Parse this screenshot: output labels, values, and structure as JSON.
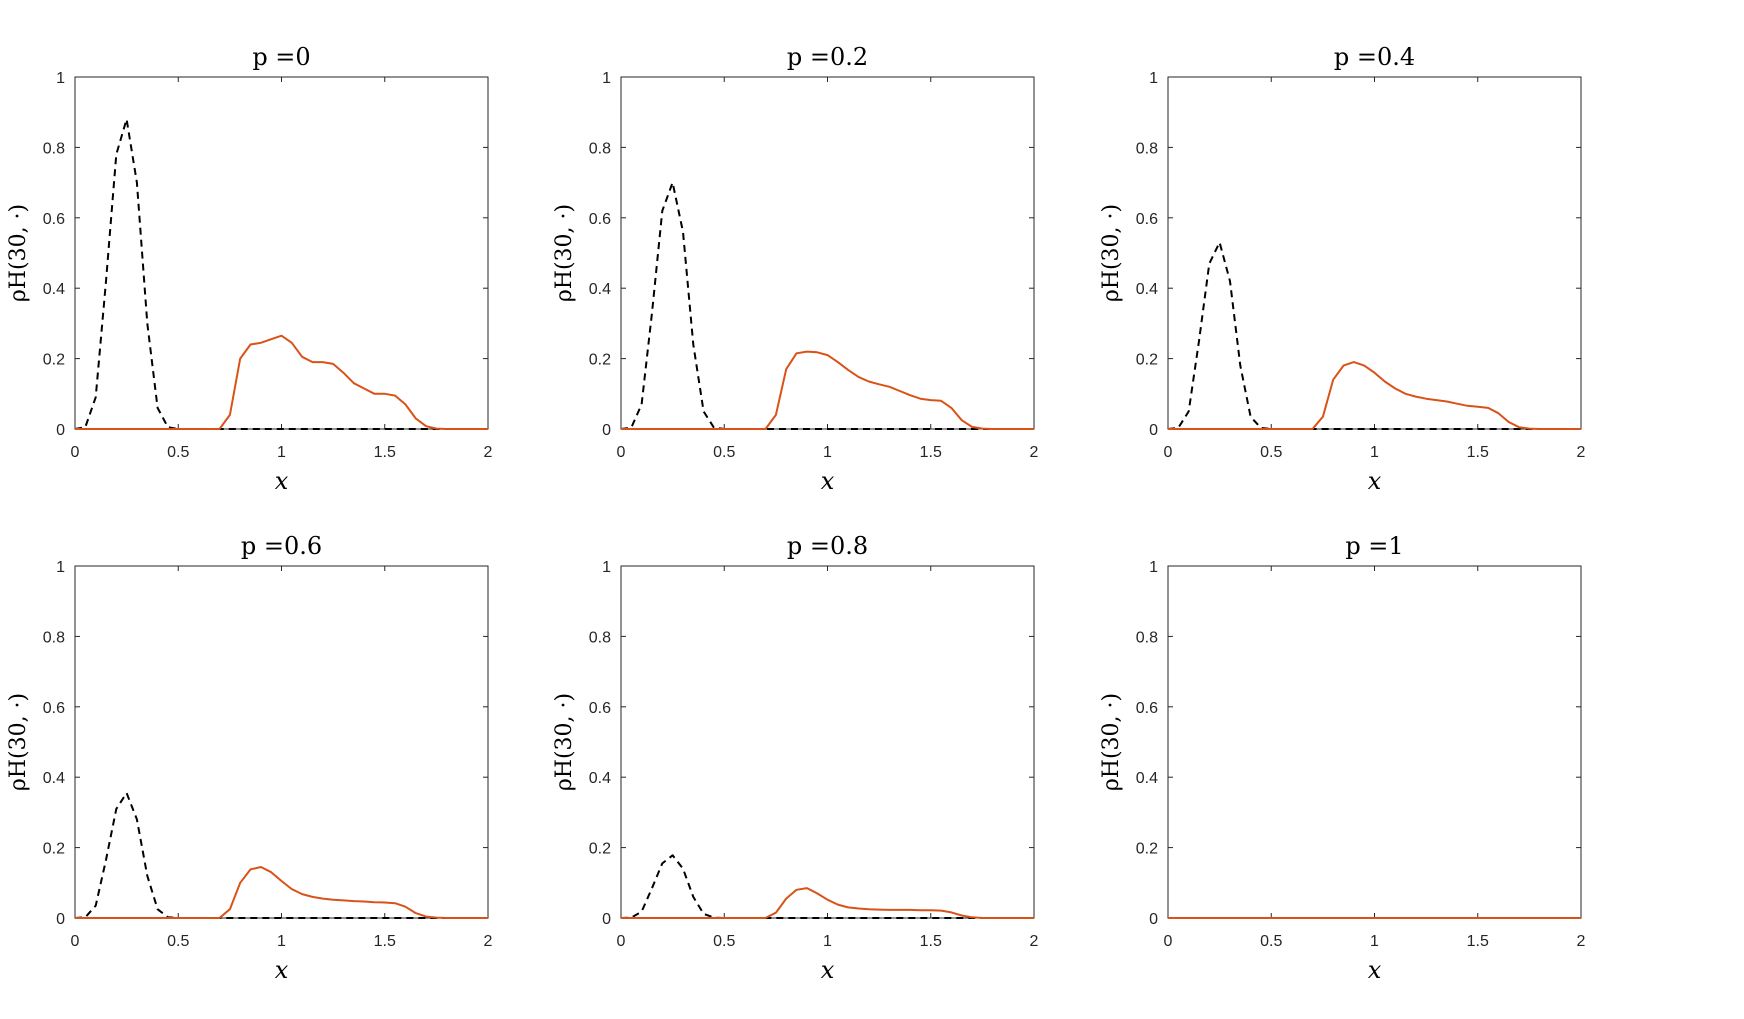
{
  "chart_data": [
    {
      "type": "line",
      "title": "p =0",
      "xlabel": "x",
      "ylabel": "ρH(30, ·)",
      "xlim": [
        0,
        2
      ],
      "ylim": [
        0,
        1
      ],
      "xticks": [
        "0",
        "0.5",
        "1",
        "1.5",
        "2"
      ],
      "yticks": [
        "0",
        "0.2",
        "0.4",
        "0.6",
        "0.8",
        "1"
      ],
      "series": [
        {
          "style": "dashed",
          "color": "#000000",
          "x": [
            0,
            0.05,
            0.1,
            0.15,
            0.2,
            0.25,
            0.3,
            0.35,
            0.4,
            0.45,
            0.5,
            2
          ],
          "y": [
            0,
            0.005,
            0.09,
            0.42,
            0.78,
            0.88,
            0.7,
            0.3,
            0.06,
            0.005,
            0,
            0
          ]
        },
        {
          "style": "solid",
          "color": "#D95319",
          "x": [
            0,
            0.7,
            0.75,
            0.8,
            0.85,
            0.9,
            0.95,
            1.0,
            1.05,
            1.1,
            1.15,
            1.2,
            1.25,
            1.3,
            1.35,
            1.4,
            1.45,
            1.5,
            1.55,
            1.6,
            1.65,
            1.7,
            1.75,
            1.8,
            2
          ],
          "y": [
            0,
            0,
            0.04,
            0.2,
            0.24,
            0.245,
            0.255,
            0.265,
            0.245,
            0.205,
            0.19,
            0.19,
            0.185,
            0.16,
            0.13,
            0.115,
            0.1,
            0.1,
            0.095,
            0.07,
            0.03,
            0.008,
            0.001,
            0,
            0
          ]
        }
      ]
    },
    {
      "type": "line",
      "title": "p =0.2",
      "xlabel": "x",
      "ylabel": "ρH(30, ·)",
      "xlim": [
        0,
        2
      ],
      "ylim": [
        0,
        1
      ],
      "xticks": [
        "0",
        "0.5",
        "1",
        "1.5",
        "2"
      ],
      "yticks": [
        "0",
        "0.2",
        "0.4",
        "0.6",
        "0.8",
        "1"
      ],
      "series": [
        {
          "style": "dashed",
          "color": "#000000",
          "x": [
            0,
            0.05,
            0.1,
            0.15,
            0.2,
            0.25,
            0.3,
            0.35,
            0.4,
            0.45,
            0.5,
            2
          ],
          "y": [
            0,
            0.004,
            0.07,
            0.33,
            0.62,
            0.7,
            0.56,
            0.24,
            0.05,
            0.004,
            0,
            0
          ]
        },
        {
          "style": "solid",
          "color": "#D95319",
          "x": [
            0,
            0.7,
            0.75,
            0.8,
            0.85,
            0.9,
            0.95,
            1.0,
            1.05,
            1.1,
            1.15,
            1.2,
            1.25,
            1.3,
            1.35,
            1.4,
            1.45,
            1.5,
            1.55,
            1.6,
            1.65,
            1.7,
            1.75,
            1.8,
            2
          ],
          "y": [
            0,
            0,
            0.04,
            0.17,
            0.215,
            0.22,
            0.218,
            0.21,
            0.19,
            0.168,
            0.148,
            0.135,
            0.127,
            0.12,
            0.108,
            0.096,
            0.086,
            0.082,
            0.08,
            0.06,
            0.025,
            0.006,
            0.001,
            0,
            0
          ]
        }
      ]
    },
    {
      "type": "line",
      "title": "p =0.4",
      "xlabel": "x",
      "ylabel": "ρH(30, ·)",
      "xlim": [
        0,
        2
      ],
      "ylim": [
        0,
        1
      ],
      "xticks": [
        "0",
        "0.5",
        "1",
        "1.5",
        "2"
      ],
      "yticks": [
        "0",
        "0.2",
        "0.4",
        "0.6",
        "0.8",
        "1"
      ],
      "series": [
        {
          "style": "dashed",
          "color": "#000000",
          "x": [
            0,
            0.05,
            0.1,
            0.15,
            0.2,
            0.25,
            0.3,
            0.35,
            0.4,
            0.45,
            0.5,
            2
          ],
          "y": [
            0,
            0.003,
            0.05,
            0.25,
            0.47,
            0.53,
            0.42,
            0.18,
            0.035,
            0.003,
            0,
            0
          ]
        },
        {
          "style": "solid",
          "color": "#D95319",
          "x": [
            0,
            0.7,
            0.75,
            0.8,
            0.85,
            0.9,
            0.95,
            1.0,
            1.05,
            1.1,
            1.15,
            1.2,
            1.25,
            1.3,
            1.35,
            1.4,
            1.45,
            1.5,
            1.55,
            1.6,
            1.65,
            1.7,
            1.75,
            1.8,
            2
          ],
          "y": [
            0,
            0,
            0.035,
            0.14,
            0.18,
            0.19,
            0.18,
            0.16,
            0.135,
            0.115,
            0.1,
            0.092,
            0.086,
            0.082,
            0.078,
            0.072,
            0.066,
            0.063,
            0.06,
            0.045,
            0.02,
            0.005,
            0.001,
            0,
            0
          ]
        }
      ]
    },
    {
      "type": "line",
      "title": "p =0.6",
      "xlabel": "x",
      "ylabel": "ρH(30, ·)",
      "xlim": [
        0,
        2
      ],
      "ylim": [
        0,
        1
      ],
      "xticks": [
        "0",
        "0.5",
        "1",
        "1.5",
        "2"
      ],
      "yticks": [
        "0",
        "0.2",
        "0.4",
        "0.6",
        "0.8",
        "1"
      ],
      "series": [
        {
          "style": "dashed",
          "color": "#000000",
          "x": [
            0,
            0.05,
            0.1,
            0.15,
            0.2,
            0.25,
            0.3,
            0.35,
            0.4,
            0.45,
            0.5,
            2
          ],
          "y": [
            0,
            0.002,
            0.035,
            0.165,
            0.31,
            0.355,
            0.28,
            0.12,
            0.025,
            0.002,
            0,
            0
          ]
        },
        {
          "style": "solid",
          "color": "#D95319",
          "x": [
            0,
            0.7,
            0.75,
            0.8,
            0.85,
            0.9,
            0.95,
            1.0,
            1.05,
            1.1,
            1.15,
            1.2,
            1.25,
            1.3,
            1.35,
            1.4,
            1.45,
            1.5,
            1.55,
            1.6,
            1.65,
            1.7,
            1.75,
            1.8,
            2
          ],
          "y": [
            0,
            0,
            0.025,
            0.1,
            0.138,
            0.145,
            0.13,
            0.105,
            0.082,
            0.068,
            0.06,
            0.055,
            0.052,
            0.05,
            0.048,
            0.047,
            0.045,
            0.044,
            0.042,
            0.032,
            0.014,
            0.004,
            0.001,
            0,
            0
          ]
        }
      ]
    },
    {
      "type": "line",
      "title": "p =0.8",
      "xlabel": "x",
      "ylabel": "ρH(30, ·)",
      "xlim": [
        0,
        2
      ],
      "ylim": [
        0,
        1
      ],
      "xticks": [
        "0",
        "0.5",
        "1",
        "1.5",
        "2"
      ],
      "yticks": [
        "0",
        "0.2",
        "0.4",
        "0.6",
        "0.8",
        "1"
      ],
      "series": [
        {
          "style": "dashed",
          "color": "#000000",
          "x": [
            0,
            0.05,
            0.1,
            0.15,
            0.2,
            0.25,
            0.3,
            0.35,
            0.4,
            0.45,
            0.5,
            2
          ],
          "y": [
            0,
            0.001,
            0.018,
            0.085,
            0.155,
            0.178,
            0.14,
            0.06,
            0.012,
            0.001,
            0,
            0
          ]
        },
        {
          "style": "solid",
          "color": "#D95319",
          "x": [
            0,
            0.7,
            0.75,
            0.8,
            0.85,
            0.9,
            0.95,
            1.0,
            1.05,
            1.1,
            1.15,
            1.2,
            1.25,
            1.3,
            1.35,
            1.4,
            1.45,
            1.5,
            1.55,
            1.6,
            1.65,
            1.7,
            1.75,
            1.8,
            2
          ],
          "y": [
            0,
            0,
            0.015,
            0.055,
            0.08,
            0.085,
            0.07,
            0.052,
            0.038,
            0.03,
            0.027,
            0.025,
            0.024,
            0.023,
            0.023,
            0.023,
            0.022,
            0.022,
            0.021,
            0.016,
            0.007,
            0.002,
            0,
            0,
            0
          ]
        }
      ]
    },
    {
      "type": "line",
      "title": "p =1",
      "xlabel": "x",
      "ylabel": "ρH(30, ·)",
      "xlim": [
        0,
        2
      ],
      "ylim": [
        0,
        1
      ],
      "xticks": [
        "0",
        "0.5",
        "1",
        "1.5",
        "2"
      ],
      "yticks": [
        "0",
        "0.2",
        "0.4",
        "0.6",
        "0.8",
        "1"
      ],
      "series": [
        {
          "style": "dashed",
          "color": "#000000",
          "x": [
            0,
            2
          ],
          "y": [
            0,
            0
          ]
        },
        {
          "style": "solid",
          "color": "#D95319",
          "x": [
            0,
            2
          ],
          "y": [
            0,
            0
          ]
        }
      ]
    }
  ]
}
